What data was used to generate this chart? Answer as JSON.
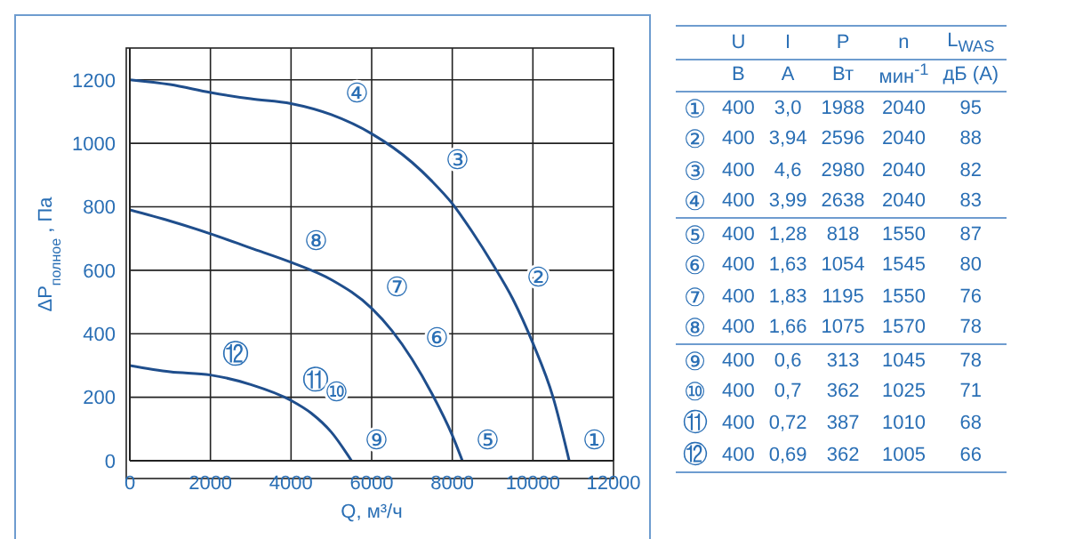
{
  "chart_data": {
    "type": "line",
    "xlabel": "Q, м³/ч",
    "ylabel": "ΔP$_{полное}$, Па",
    "xlim": [
      0,
      12000
    ],
    "xticks": [
      0,
      2000,
      4000,
      6000,
      8000,
      10000,
      12000
    ],
    "ylim": [
      0,
      1300
    ],
    "yticks": [
      0,
      200,
      400,
      600,
      800,
      1000,
      1200
    ],
    "grid": true,
    "legend": false,
    "marker": "none",
    "line_style": "solid",
    "series": [
      {
        "color": "#1f4e8c",
        "x": [
          0,
          1000,
          2000,
          3000,
          4000,
          5000,
          6000,
          7000,
          7500,
          8000,
          8500,
          9000,
          9500,
          10000,
          10500,
          10900
        ],
        "values": [
          1200,
          1185,
          1160,
          1140,
          1125,
          1090,
          1030,
          940,
          880,
          810,
          720,
          620,
          510,
          370,
          200,
          0
        ]
      },
      {
        "color": "#1f4e8c",
        "x": [
          0,
          1000,
          2000,
          3000,
          4000,
          5000,
          6000,
          6500,
          7000,
          7500,
          8000,
          8250
        ],
        "values": [
          790,
          755,
          715,
          670,
          625,
          570,
          480,
          410,
          320,
          210,
          80,
          0
        ]
      },
      {
        "color": "#1f4e8c",
        "x": [
          0,
          1000,
          2000,
          3000,
          4000,
          4500,
          5000,
          5500
        ],
        "values": [
          300,
          280,
          270,
          240,
          190,
          150,
          90,
          0
        ]
      }
    ],
    "annotations": [
      {
        "text": "④",
        "x": 5000,
        "y": 1090
      },
      {
        "text": "③",
        "x": 7500,
        "y": 880
      },
      {
        "text": "②",
        "x": 9500,
        "y": 510
      },
      {
        "text": "①",
        "x": 10900,
        "y": 0
      },
      {
        "text": "⑧",
        "x": 4000,
        "y": 625
      },
      {
        "text": "⑦",
        "x": 6000,
        "y": 480
      },
      {
        "text": "⑥",
        "x": 7000,
        "y": 320
      },
      {
        "text": "⑤",
        "x": 8250,
        "y": 0
      },
      {
        "text": "⑫",
        "x": 2000,
        "y": 270
      },
      {
        "text": "⑪",
        "x": 4000,
        "y": 190
      },
      {
        "text": "⑩",
        "x": 4500,
        "y": 150
      },
      {
        "text": "⑨",
        "x": 5500,
        "y": 0
      },
      "U",
      "I",
      "P",
      "n",
      "L$_{WAS}$",
      "В",
      "А",
      "Вт",
      "мин$^{-1}$",
      "дБ (A)",
      "①",
      "400",
      "3,0",
      "1988",
      "2040",
      "95",
      "②",
      "400",
      "3,94",
      "2596",
      "2040",
      "88",
      "③",
      "400",
      "4,6",
      "2980",
      "2040",
      "82",
      "④",
      "400",
      "3,99",
      "2638",
      "2040",
      "83",
      "⑤",
      "400",
      "1,28",
      "818",
      "1550",
      "87",
      "⑥",
      "400",
      "1,63",
      "1054",
      "1545",
      "80",
      "⑦",
      "400",
      "1,83",
      "1195",
      "1550",
      "76",
      "⑧",
      "400",
      "1,66",
      "1075",
      "1570",
      "78",
      "⑨",
      "400",
      "0,6",
      "313",
      "1045",
      "78",
      "⑩",
      "400",
      "0,7",
      "362",
      "1025",
      "71",
      "⑪",
      "400",
      "0,72",
      "387",
      "1010",
      "68",
      "⑫",
      "400",
      "0,69",
      "362",
      "1005",
      "66"
    ]
  }
}
